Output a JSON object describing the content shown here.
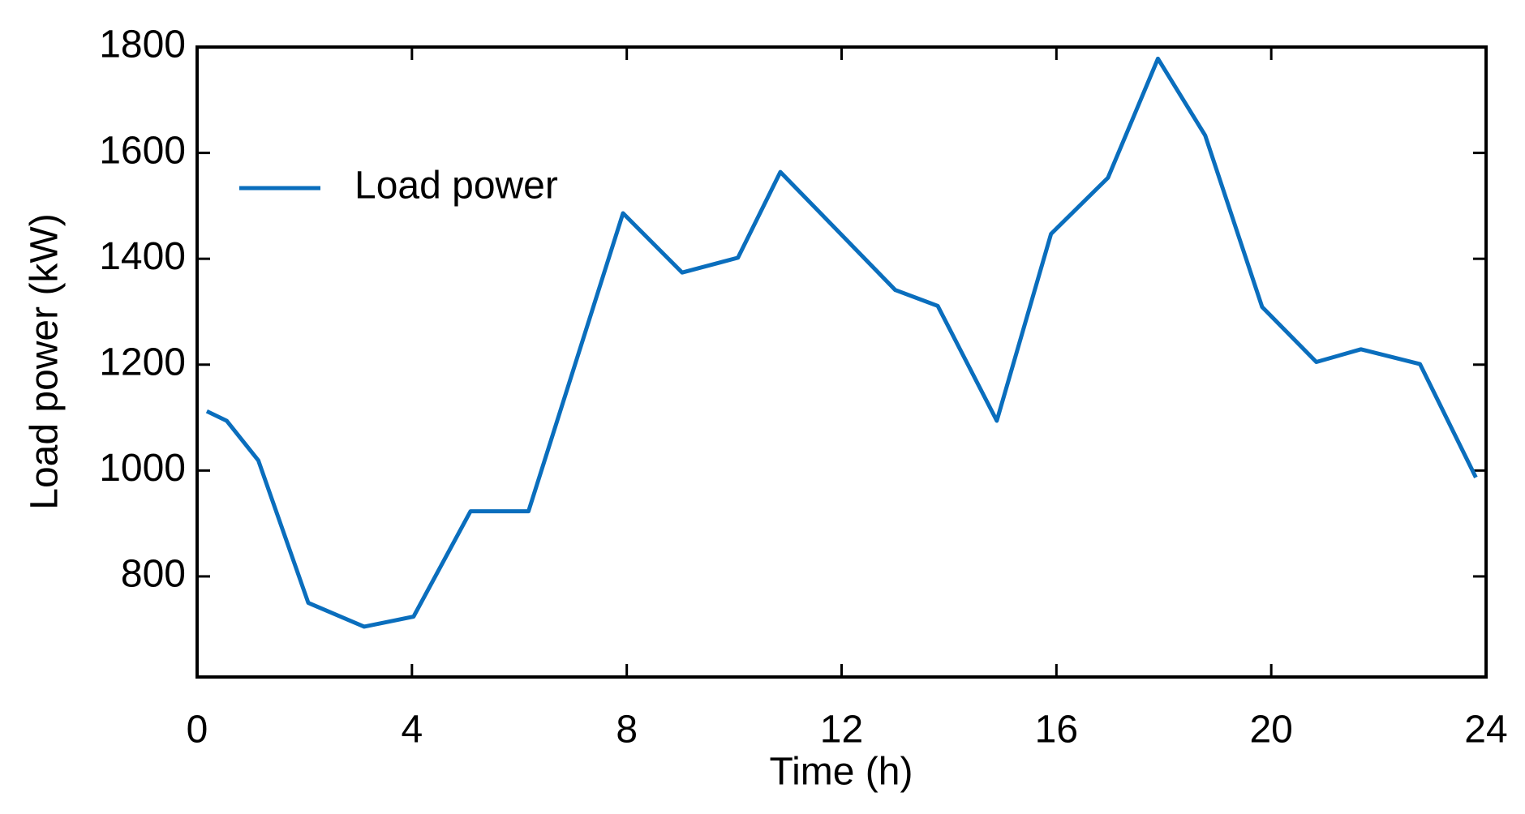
{
  "chart_data": {
    "type": "line",
    "x_label": "Time (h)",
    "y_label": "Load power (kW)",
    "x": [
      0.18,
      0.55,
      1.14,
      2.07,
      3.11,
      4.03,
      5.09,
      6.17,
      7.93,
      9.03,
      10.07,
      10.86,
      13.0,
      13.79,
      14.89,
      15.9,
      16.96,
      17.89,
      18.77,
      19.83,
      20.84,
      21.67,
      22.77,
      23.81
    ],
    "series": [
      {
        "name": "Load power",
        "color": "#0a6ebd",
        "values": [
          1112,
          1094,
          1019,
          750,
          705,
          724,
          923,
          923,
          1486,
          1374,
          1402,
          1564,
          1341,
          1311,
          1094,
          1447,
          1553,
          1778,
          1633,
          1309,
          1205,
          1229,
          1201,
          987
        ]
      }
    ],
    "xlim": [
      0,
      24
    ],
    "xticks": [
      0,
      4,
      8,
      12,
      16,
      20,
      24
    ],
    "ylim": [
      610,
      1800
    ],
    "yticks": [
      800,
      1000,
      1200,
      1400,
      1600,
      1800
    ],
    "legend": "upper left"
  }
}
